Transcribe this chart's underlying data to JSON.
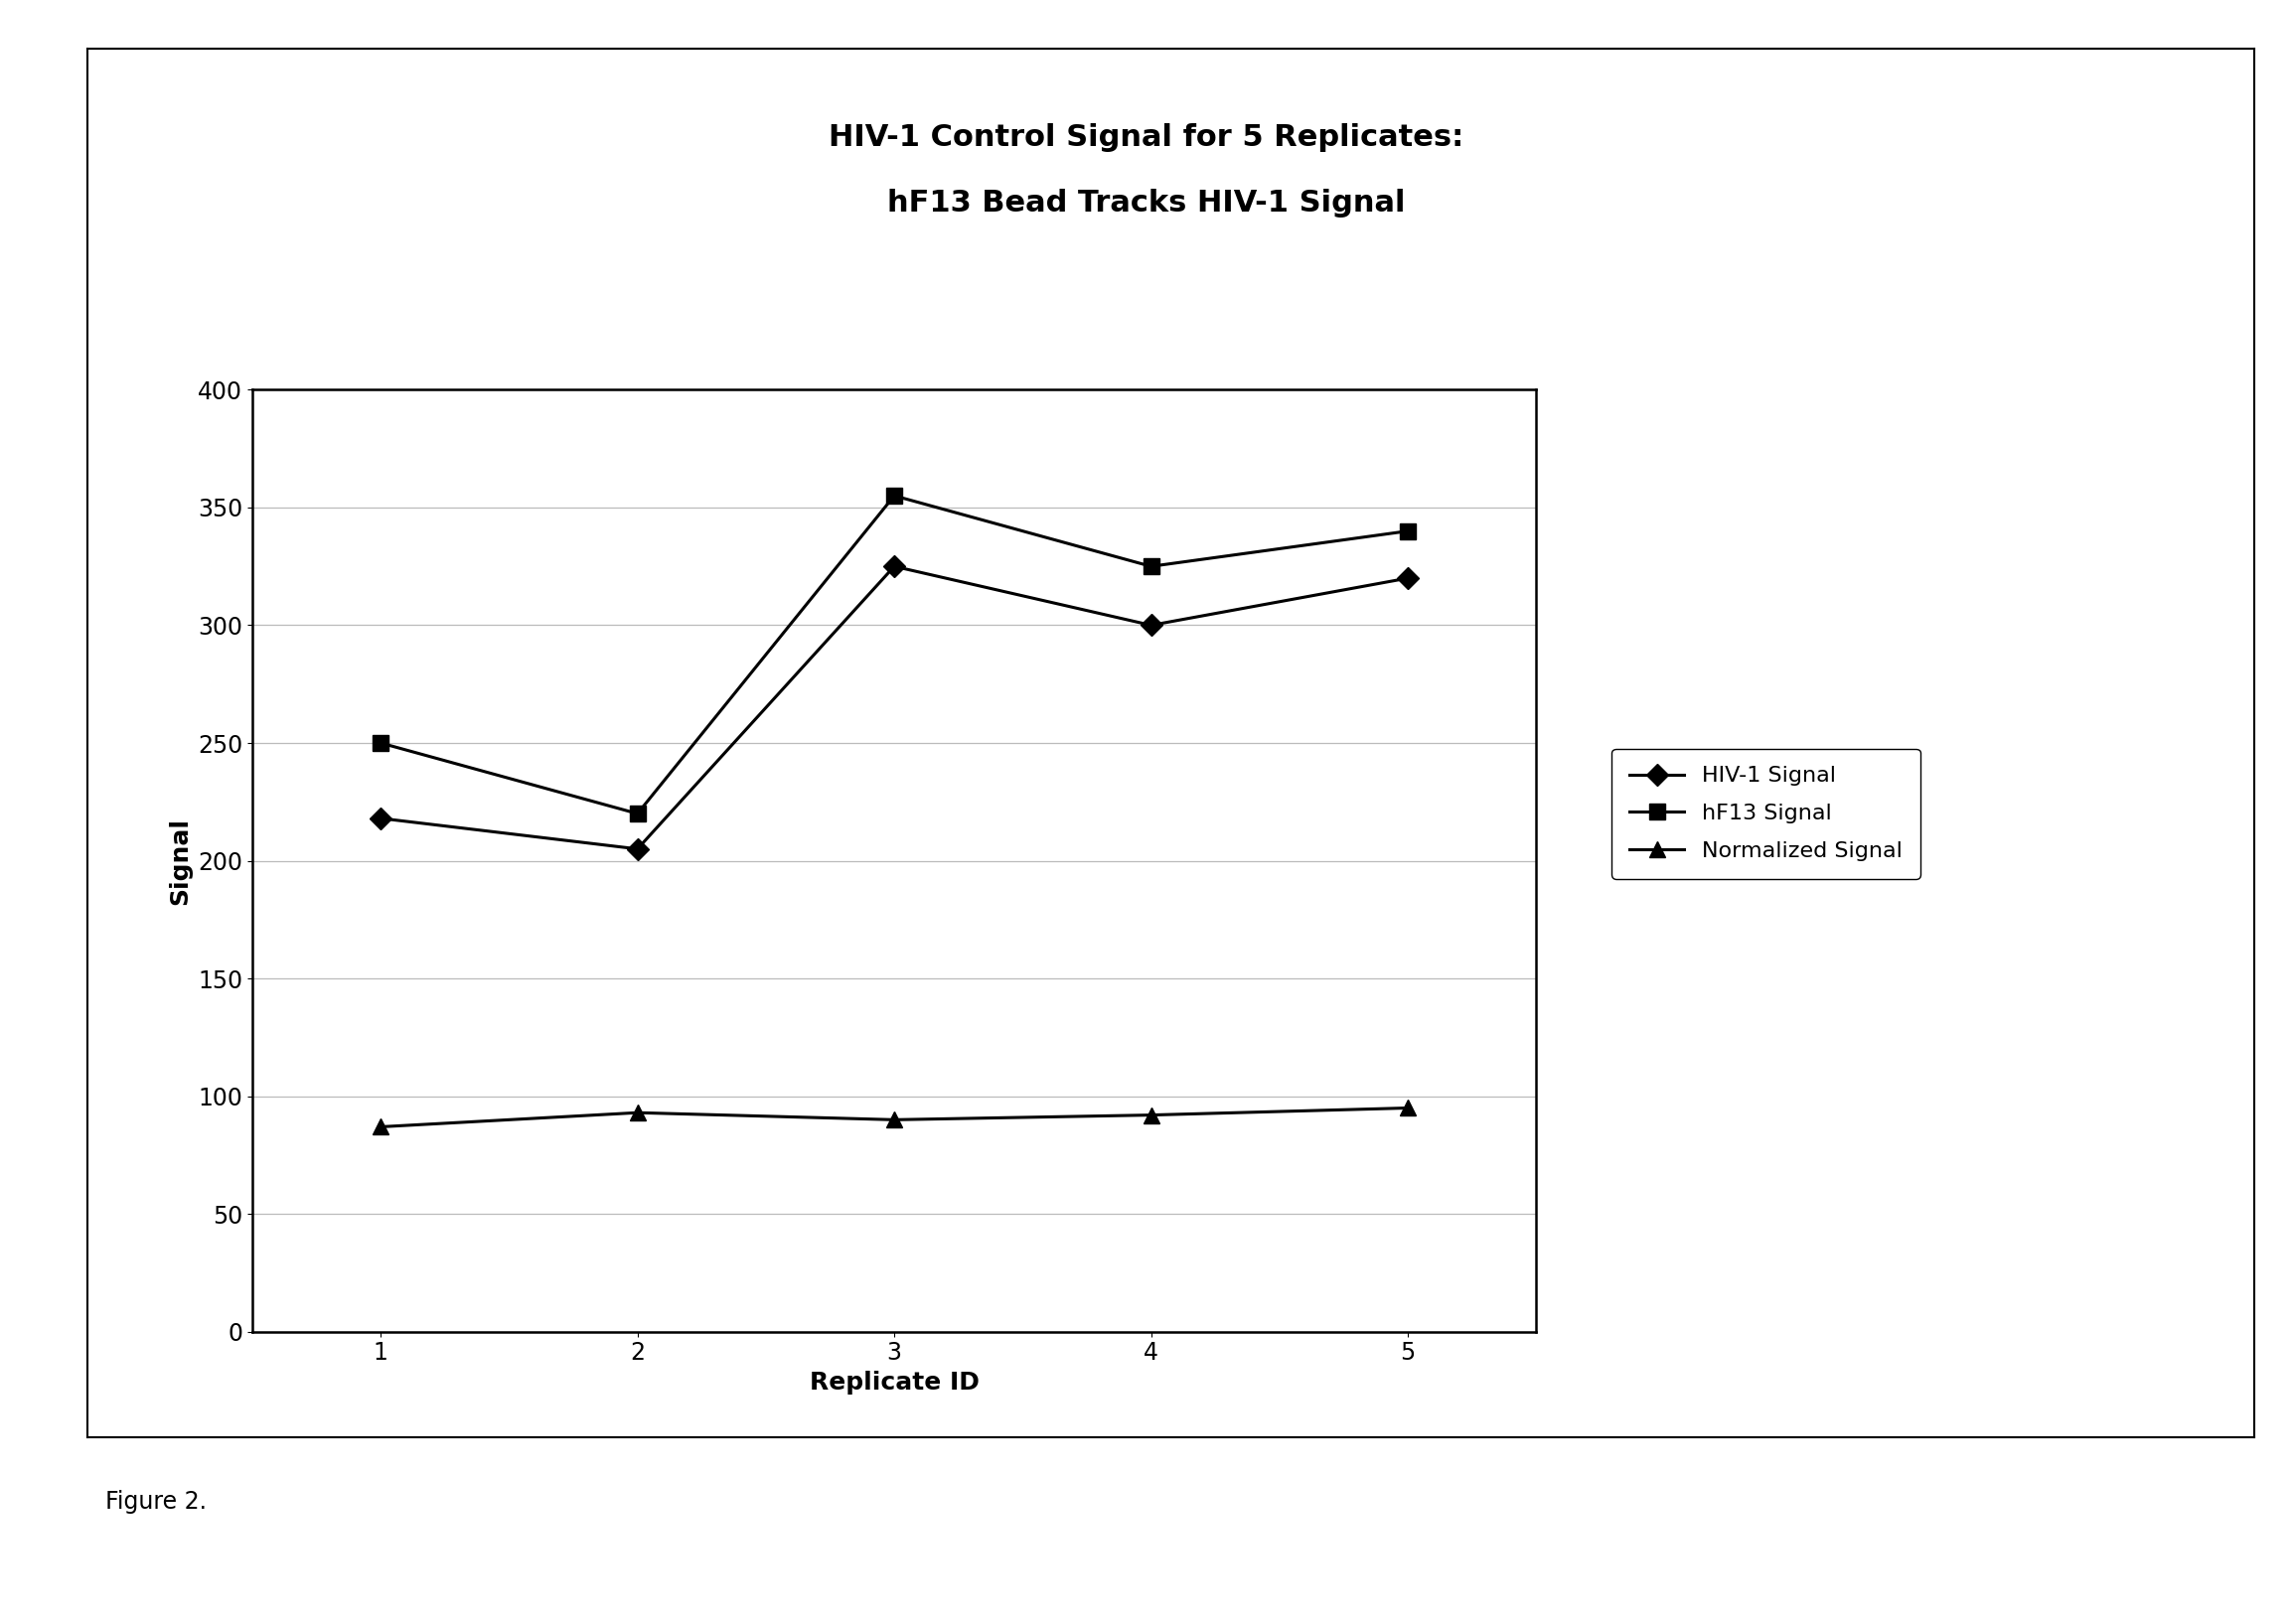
{
  "title_line1": "HIV-1 Control Signal for 5 Replicates:",
  "title_line2": "hF13 Bead Tracks HIV-1 Signal",
  "xlabel": "Replicate ID",
  "ylabel": "Signal",
  "x": [
    1,
    2,
    3,
    4,
    5
  ],
  "hiv1_signal": [
    218,
    205,
    325,
    300,
    320
  ],
  "hf13_signal": [
    250,
    220,
    355,
    325,
    340
  ],
  "norm_signal": [
    87,
    93,
    90,
    92,
    95
  ],
  "ylim": [
    0,
    400
  ],
  "yticks": [
    0,
    50,
    100,
    150,
    200,
    250,
    300,
    350,
    400
  ],
  "xlim": [
    0.5,
    5.5
  ],
  "legend_labels": [
    "HIV-1 Signal",
    "hF13 Signal",
    "Normalized Signal"
  ],
  "figure_caption": "Figure 2.",
  "line_color": "#000000",
  "bg_color": "#ffffff",
  "title_fontsize": 22,
  "axis_label_fontsize": 18,
  "tick_fontsize": 17,
  "legend_fontsize": 16,
  "caption_fontsize": 17,
  "linewidth": 2.2,
  "markersize": 11
}
